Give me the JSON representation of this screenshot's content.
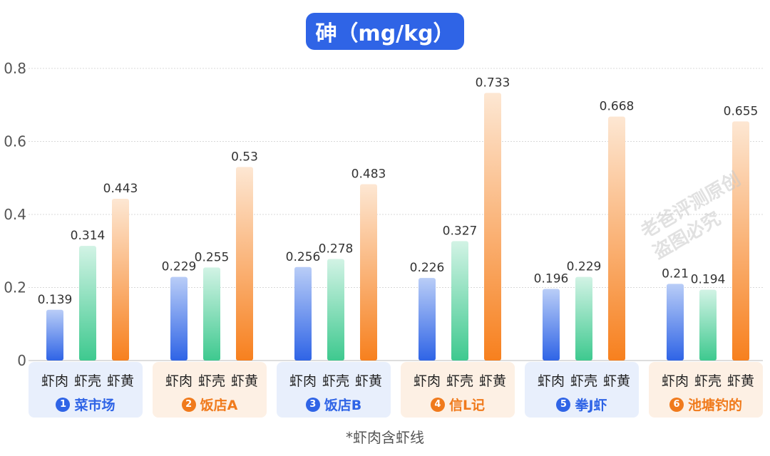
{
  "title": "砷（mg/kg）",
  "footnote": "*虾肉含虾线",
  "watermark": [
    "老爸评测原创",
    "盗图必究"
  ],
  "colors": {
    "series": [
      "#2f64e6",
      "#3ec98f",
      "#f7801e"
    ],
    "group_blue_bg": "#e8effc",
    "group_orange_bg": "#fdf0e4",
    "title_bg": "#2f64e6"
  },
  "chart_data": {
    "type": "bar",
    "title": "砷（mg/kg）",
    "ylim": [
      0,
      0.8
    ],
    "yticks": [
      "0",
      "0.2",
      "0.4",
      "0.6",
      "0.8"
    ],
    "grid": true,
    "sub_labels": [
      "虾肉",
      "虾壳",
      "虾黄"
    ],
    "categories": [
      {
        "num": "1",
        "name": "菜市场",
        "theme": "blue"
      },
      {
        "num": "2",
        "name": "饭店A",
        "theme": "orange"
      },
      {
        "num": "3",
        "name": "饭店B",
        "theme": "blue"
      },
      {
        "num": "4",
        "name": "信L记",
        "theme": "orange"
      },
      {
        "num": "5",
        "name": "拳J虾",
        "theme": "blue"
      },
      {
        "num": "6",
        "name": "池塘钓的",
        "theme": "orange"
      }
    ],
    "values": [
      [
        0.139,
        0.314,
        0.443
      ],
      [
        0.229,
        0.255,
        0.53
      ],
      [
        0.256,
        0.278,
        0.483
      ],
      [
        0.226,
        0.327,
        0.733
      ],
      [
        0.196,
        0.229,
        0.668
      ],
      [
        0.21,
        0.194,
        0.655
      ]
    ],
    "value_labels": [
      [
        "0.139",
        "0.314",
        "0.443"
      ],
      [
        "0.229",
        "0.255",
        "0.53"
      ],
      [
        "0.256",
        "0.278",
        "0.483"
      ],
      [
        "0.226",
        "0.327",
        "0.733"
      ],
      [
        "0.196",
        "0.229",
        "0.668"
      ],
      [
        "0.21",
        "0.194",
        "0.655"
      ]
    ]
  }
}
